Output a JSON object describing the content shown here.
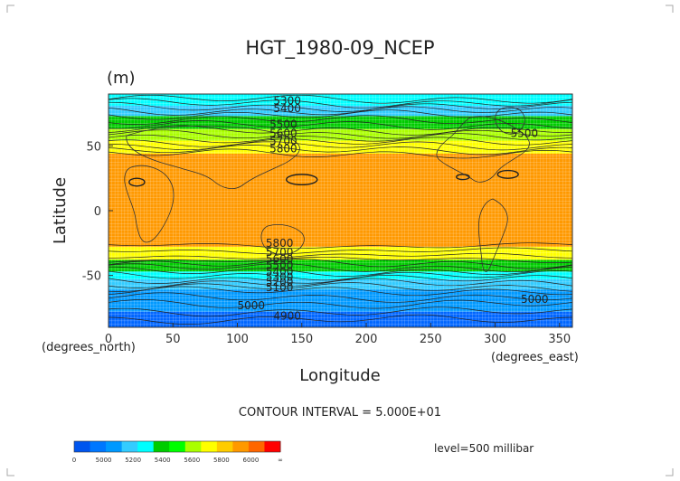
{
  "chart_data": {
    "type": "heatmap",
    "title": "HGT_1980-09_NCEP",
    "units": "(m)",
    "xlabel": "Longitude",
    "ylabel": "Latitude",
    "x_unit": "(degrees_east)",
    "y_unit": "(degrees_north)",
    "xlim": [
      0,
      360
    ],
    "ylim": [
      -90,
      90
    ],
    "x_ticks": [
      "0",
      "50",
      "100",
      "150",
      "200",
      "250",
      "300",
      "350"
    ],
    "x_tick_values": [
      0,
      50,
      100,
      150,
      200,
      250,
      300,
      350
    ],
    "y_ticks": [
      "50",
      "0",
      "-50"
    ],
    "y_tick_values": [
      50,
      0,
      -50
    ],
    "contour_interval_text": "CONTOUR INTERVAL = 5.000E+01",
    "level_text": "level=500 millibar",
    "bands": [
      {
        "lat": [
          81,
          90
        ],
        "color": "#00ffff"
      },
      {
        "lat": [
          73,
          81
        ],
        "color": "#33ccff"
      },
      {
        "lat": [
          63,
          73
        ],
        "color": "#00cc00"
      },
      {
        "lat": [
          54,
          63
        ],
        "color": "#aaff00"
      },
      {
        "lat": [
          44,
          54
        ],
        "color": "#ffff00"
      },
      {
        "lat": [
          -28,
          44
        ],
        "color": "#ff9900"
      },
      {
        "lat": [
          -38,
          -28
        ],
        "color": "#ffff00"
      },
      {
        "lat": [
          -47,
          -38
        ],
        "color": "#00cc00"
      },
      {
        "lat": [
          -53,
          -47
        ],
        "color": "#00ffff"
      },
      {
        "lat": [
          -61,
          -53
        ],
        "color": "#33ccff"
      },
      {
        "lat": [
          -78,
          -61
        ],
        "color": "#0099ff"
      },
      {
        "lat": [
          -90,
          -78
        ],
        "color": "#0066ff"
      }
    ],
    "contour_labels": [
      {
        "text": "5300",
        "lon": 128,
        "lat": 82
      },
      {
        "text": "5400",
        "lon": 128,
        "lat": 76
      },
      {
        "text": "5500",
        "lon": 125,
        "lat": 64
      },
      {
        "text": "5600",
        "lon": 125,
        "lat": 57
      },
      {
        "text": "5700",
        "lon": 125,
        "lat": 51
      },
      {
        "text": "5800",
        "lon": 125,
        "lat": 45
      },
      {
        "text": "5500",
        "lon": 312,
        "lat": 57
      },
      {
        "text": "5800",
        "lon": 122,
        "lat": -28
      },
      {
        "text": "5700",
        "lon": 122,
        "lat": -35
      },
      {
        "text": "5600",
        "lon": 122,
        "lat": -40
      },
      {
        "text": "5500",
        "lon": 122,
        "lat": -45
      },
      {
        "text": "5400",
        "lon": 122,
        "lat": -50
      },
      {
        "text": "5300",
        "lon": 122,
        "lat": -54
      },
      {
        "text": "5200",
        "lon": 122,
        "lat": -58
      },
      {
        "text": "5100",
        "lon": 122,
        "lat": -62
      },
      {
        "text": "5000",
        "lon": 100,
        "lat": -76
      },
      {
        "text": "5000",
        "lon": 320,
        "lat": -71
      },
      {
        "text": "4900",
        "lon": 128,
        "lat": -84
      }
    ],
    "colorbar": {
      "ticks": [
        "0",
        "5000",
        "5200",
        "5400",
        "5600",
        "5800",
        "6000",
        "∞"
      ],
      "segments": [
        "#0055ee",
        "#0077ff",
        "#0099ff",
        "#33ccff",
        "#00ffff",
        "#00cc00",
        "#00ff00",
        "#aaff00",
        "#ffff00",
        "#ffcc00",
        "#ff9900",
        "#ff6600",
        "#ff0000"
      ]
    }
  }
}
